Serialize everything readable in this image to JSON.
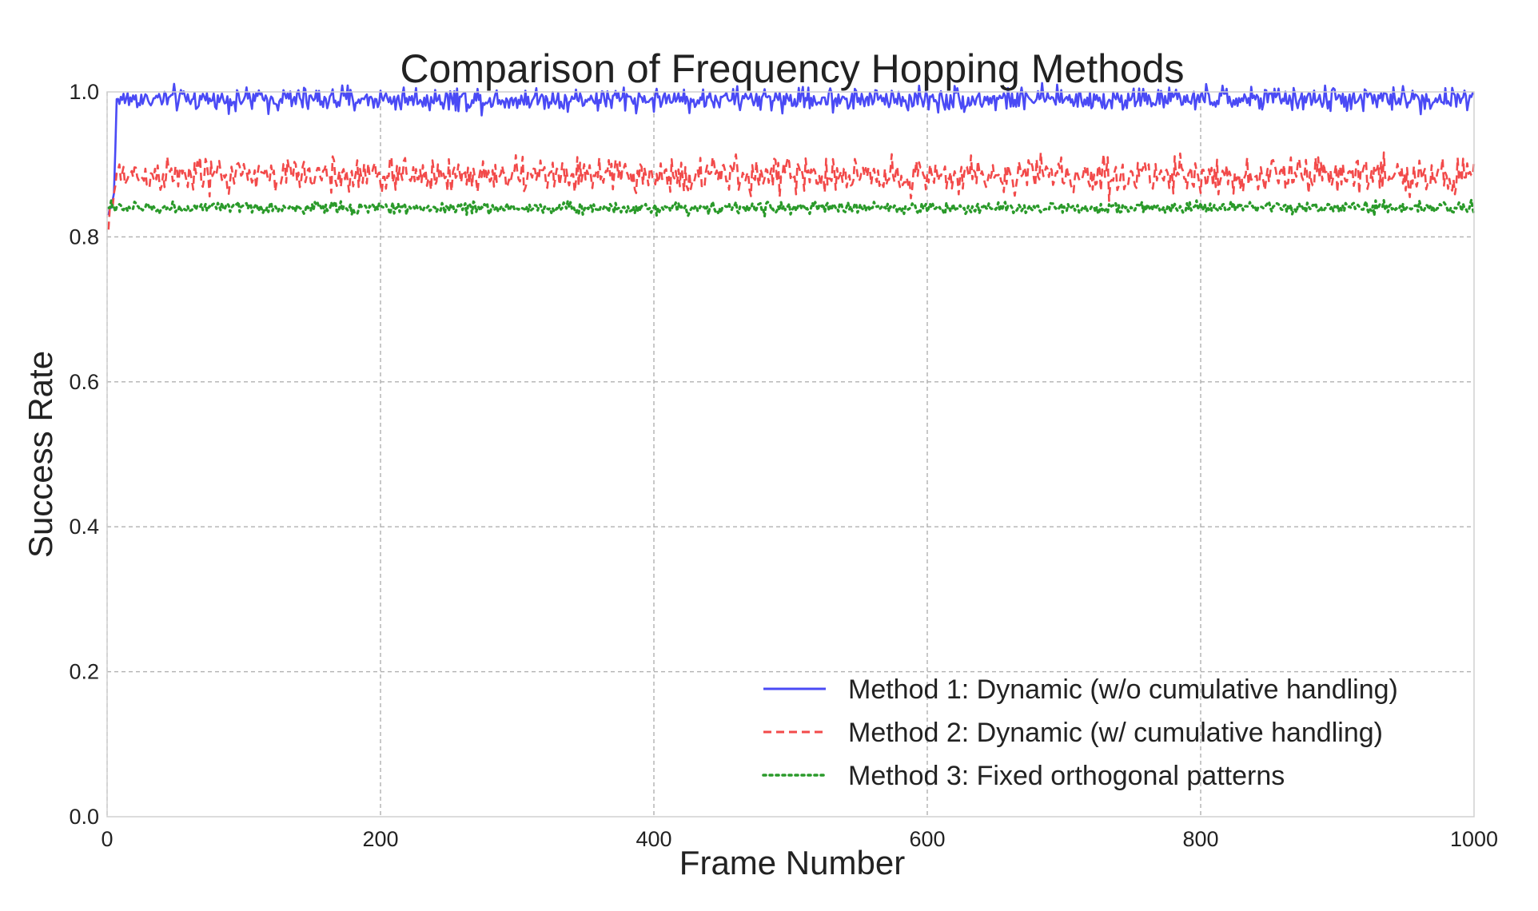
{
  "chart_data": {
    "type": "line",
    "title": "Comparison of Frequency Hopping Methods",
    "xlabel": "Frame Number",
    "ylabel": "Success Rate",
    "xlim": [
      0,
      1000
    ],
    "ylim": [
      0.0,
      1.0
    ],
    "x_ticks": [
      0,
      200,
      400,
      600,
      800,
      1000
    ],
    "x_tick_labels": [
      "0",
      "200",
      "400",
      "600",
      "800",
      "1000"
    ],
    "y_ticks": [
      0.0,
      0.2,
      0.4,
      0.6,
      0.8,
      1.0
    ],
    "y_tick_labels": [
      "0.0",
      "0.2",
      "0.4",
      "0.6",
      "0.8",
      "1.0"
    ],
    "grid": true,
    "legend_position": "lower-right",
    "x": {
      "start": 1,
      "end": 1000,
      "step": 1
    },
    "series": [
      {
        "name": "Method 1: Dynamic (w/o cumulative handling)",
        "color": "#4a4af5",
        "style": "solid",
        "initial_values": [
          0.83,
          0.84,
          0.84,
          0.85,
          0.86,
          0.92,
          0.99
        ],
        "steady_mean": 0.99,
        "fluctuation": 0.008
      },
      {
        "name": "Method 2: Dynamic (w/ cumulative handling)",
        "color": "#f24a4a",
        "style": "dashed",
        "initial_values": [
          0.81,
          0.84,
          0.85,
          0.84,
          0.86,
          0.87
        ],
        "steady_mean": 0.885,
        "fluctuation": 0.012
      },
      {
        "name": "Method 3: Fixed orthogonal patterns",
        "color": "#2a9a2a",
        "style": "dotted",
        "initial_values": [
          0.84,
          0.84,
          0.85,
          0.84
        ],
        "steady_mean": 0.84,
        "fluctuation": 0.004
      }
    ]
  }
}
